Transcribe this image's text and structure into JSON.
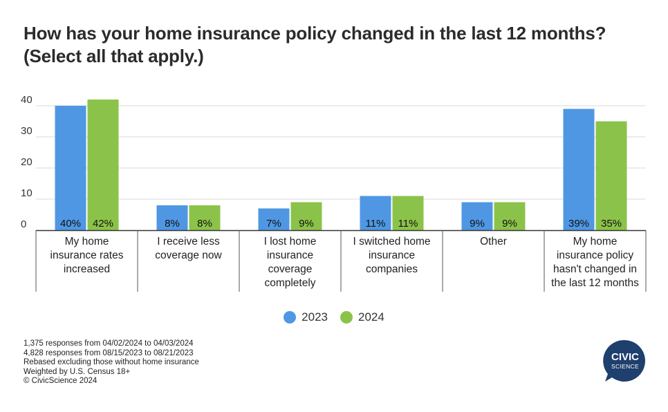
{
  "header": {
    "title": "How has your home insurance policy changed in the last 12 months?\n(Select all that apply.)"
  },
  "chart_data": {
    "type": "bar",
    "title": "How has your home insurance policy changed in the last 12 months? (Select all that apply.)",
    "categories": [
      "My home insurance rates increased",
      "I receive less coverage now",
      "I lost home insurance coverage completely",
      "I switched home insurance companies",
      "Other",
      "My home insurance policy hasn't changed in the last 12 months"
    ],
    "category_lines": [
      [
        "My home",
        "insurance rates",
        "increased"
      ],
      [
        "I receive less",
        "coverage now"
      ],
      [
        "I lost home",
        "insurance",
        "coverage",
        "completely"
      ],
      [
        "I switched home",
        "insurance",
        "companies"
      ],
      [
        "Other"
      ],
      [
        "My home",
        "insurance policy",
        "hasn't changed in",
        "the last 12 months"
      ]
    ],
    "series": [
      {
        "name": "2023",
        "color": "#4f97e3",
        "values": [
          40,
          8,
          7,
          11,
          9,
          39
        ],
        "labels": [
          "40%",
          "8%",
          "7%",
          "11%",
          "9%",
          "39%"
        ]
      },
      {
        "name": "2024",
        "color": "#8bc34a",
        "values": [
          42,
          8,
          9,
          11,
          9,
          35
        ],
        "labels": [
          "42%",
          "8%",
          "9%",
          "11%",
          "9%",
          "35%"
        ]
      }
    ],
    "yticks": [
      0,
      10,
      20,
      30,
      40
    ],
    "ylim": [
      0,
      42
    ],
    "grid": true,
    "legend_position": "bottom"
  },
  "footer": {
    "lines": [
      "1,375 responses from 04/02/2024 to 04/03/2024",
      "4,828 responses from 08/15/2023 to 08/21/2023",
      "Rebased excluding those without home insurance",
      "Weighted by U.S. Census 18+",
      "© CivicScience 2024"
    ]
  },
  "logo": {
    "line1": "CIVIC",
    "line2": "SCIENCE",
    "color": "#1f3f6e"
  }
}
